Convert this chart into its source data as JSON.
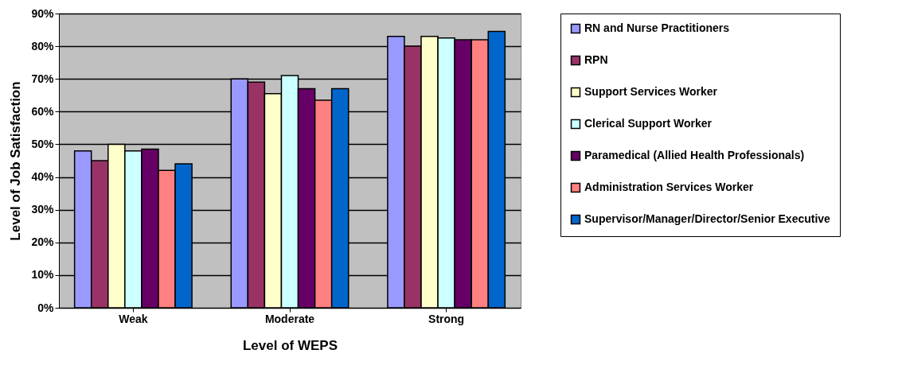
{
  "chart_data": {
    "type": "bar",
    "xlabel": "Level of WEPS",
    "ylabel": "Level of Job Satisfaction",
    "categories": [
      "Weak",
      "Moderate",
      "Strong"
    ],
    "series": [
      {
        "name": "RN and Nurse Practitioners",
        "color": "#9999ff",
        "values": [
          48,
          70,
          83
        ]
      },
      {
        "name": "RPN",
        "color": "#993366",
        "values": [
          45,
          69,
          80
        ]
      },
      {
        "name": "Support Services Worker",
        "color": "#ffffcc",
        "values": [
          50,
          65.5,
          83
        ]
      },
      {
        "name": "Clerical Support Worker",
        "color": "#ccffff",
        "values": [
          48,
          71,
          82.5
        ]
      },
      {
        "name": "Paramedical (Allied Health Professionals)",
        "color": "#660066",
        "values": [
          48.5,
          67,
          82
        ]
      },
      {
        "name": "Administration Services Worker",
        "color": "#ff8080",
        "values": [
          42,
          63.5,
          82
        ]
      },
      {
        "name": "Supervisor/Manager/Director/Senior Executive",
        "color": "#0066cc",
        "values": [
          44,
          67,
          84.5
        ]
      }
    ],
    "ylim": [
      0,
      90
    ],
    "yticks": [
      {
        "value": 0,
        "label": "0%"
      },
      {
        "value": 10,
        "label": "10%"
      },
      {
        "value": 20,
        "label": "20%"
      },
      {
        "value": 30,
        "label": "30%"
      },
      {
        "value": 40,
        "label": "40%"
      },
      {
        "value": 50,
        "label": "50%"
      },
      {
        "value": 60,
        "label": "60%"
      },
      {
        "value": 70,
        "label": "70%"
      },
      {
        "value": 80,
        "label": "80%"
      },
      {
        "value": 90,
        "label": "90%"
      }
    ],
    "grid": "y",
    "legend": "right"
  }
}
